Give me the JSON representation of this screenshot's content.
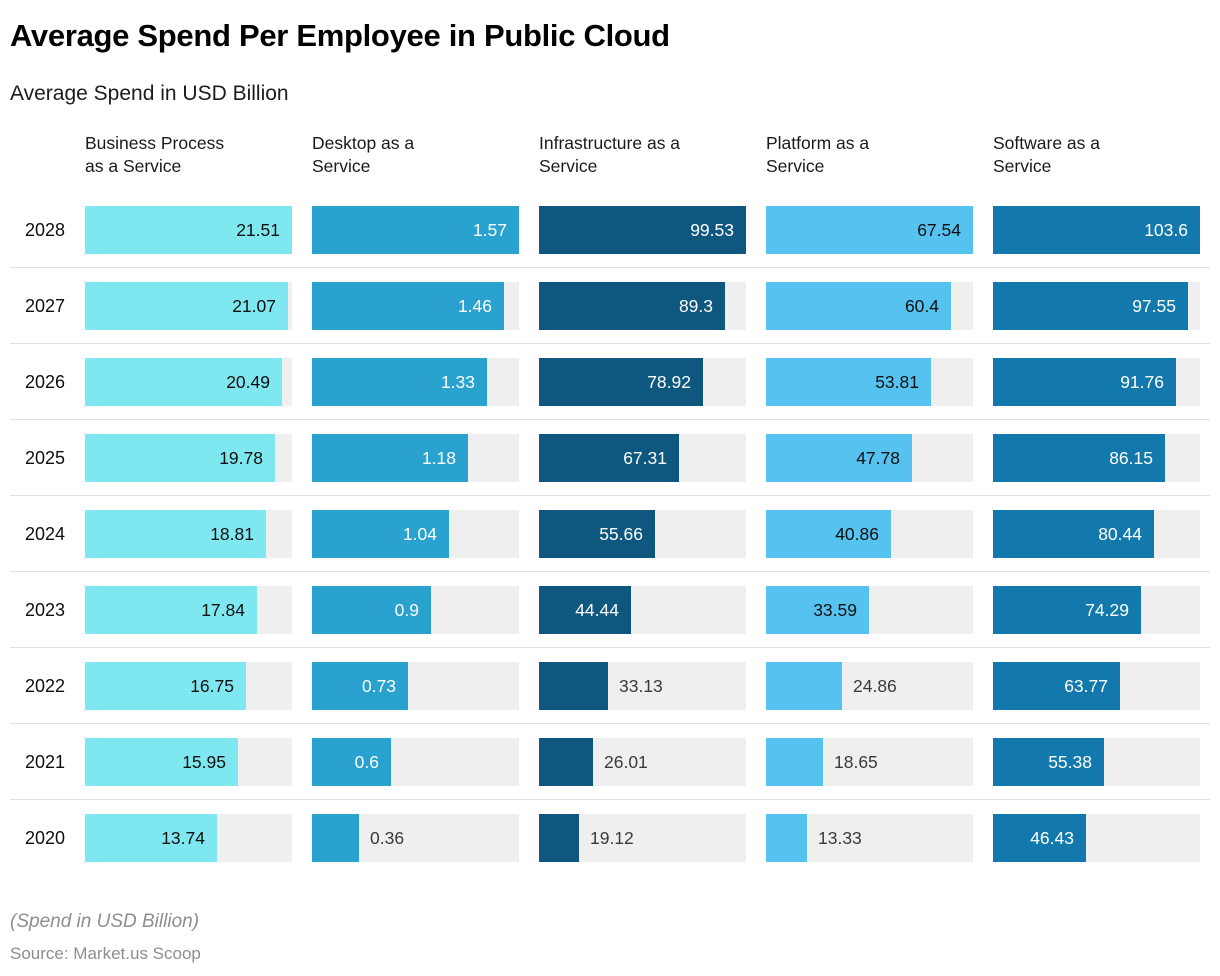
{
  "page": {
    "title": "Average Spend Per Employee in Public Cloud",
    "subtitle": "Average Spend in USD Billion",
    "footnote": "(Spend in USD Billion)",
    "source": "Source: Market.us Scoop"
  },
  "chart_data": {
    "type": "bar",
    "orientation": "horizontal",
    "title": "Average Spend Per Employee in Public Cloud",
    "subtitle": "Average Spend in USD Billion",
    "value_unit": "USD Billion",
    "grid": "row dividers between year groups",
    "legend_position": "column headers on top",
    "track_color": "#efefef",
    "outside_label_color": "#3a3a3a",
    "categories": [
      "2028",
      "2027",
      "2026",
      "2025",
      "2024",
      "2023",
      "2022",
      "2021",
      "2020"
    ],
    "series": [
      {
        "name": "Business Process as a Service",
        "header_lines": [
          "Business Process",
          "as a Service"
        ],
        "color": "#7fe7f0",
        "label_color": "#101010",
        "values": [
          21.51,
          21.07,
          20.49,
          19.78,
          18.81,
          17.84,
          16.75,
          15.95,
          13.74
        ]
      },
      {
        "name": "Desktop as a Service",
        "header_lines": [
          "Desktop as a",
          "Service"
        ],
        "color": "#29a2cf",
        "label_color": "#ffffff",
        "values": [
          1.57,
          1.46,
          1.33,
          1.18,
          1.04,
          0.9,
          0.73,
          0.6,
          0.36
        ]
      },
      {
        "name": "Infrastructure as a Service",
        "header_lines": [
          "Infrastructure as a",
          "Service"
        ],
        "color": "#0e577f",
        "label_color": "#ffffff",
        "values": [
          99.53,
          89.3,
          78.92,
          67.31,
          55.66,
          44.44,
          33.13,
          26.01,
          19.12
        ]
      },
      {
        "name": "Platform as a Service",
        "header_lines": [
          "Platform as a",
          "Service"
        ],
        "color": "#56c2f0",
        "label_color": "#101010",
        "values": [
          67.54,
          60.4,
          53.81,
          47.78,
          40.86,
          33.59,
          24.86,
          18.65,
          13.33
        ]
      },
      {
        "name": "Software as a Service",
        "header_lines": [
          "Software as a",
          "Service"
        ],
        "color": "#1379ad",
        "label_color": "#ffffff",
        "values": [
          103.6,
          97.55,
          91.76,
          86.15,
          80.44,
          74.29,
          63.77,
          55.38,
          46.43
        ]
      }
    ]
  }
}
